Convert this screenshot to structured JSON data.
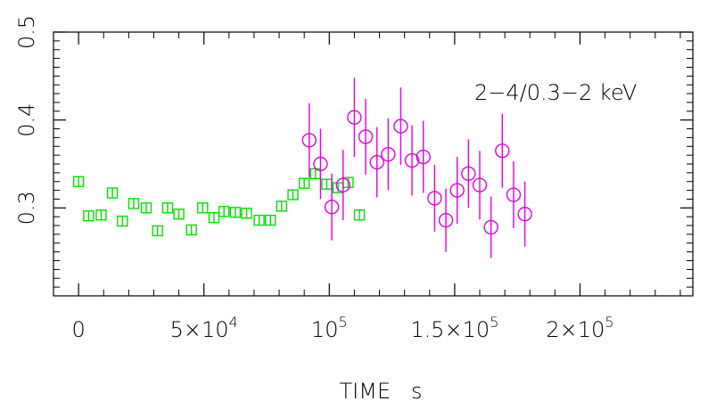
{
  "chart_data": {
    "type": "scatter",
    "title": "",
    "xlabel": "TIME   s",
    "ylabel": "",
    "xlim": [
      -10000,
      245000
    ],
    "ylim": [
      0.2,
      0.5
    ],
    "x_ticks": [
      {
        "value": 0,
        "base": "0",
        "exp": ""
      },
      {
        "value": 50000,
        "base": "5×10",
        "exp": "4"
      },
      {
        "value": 100000,
        "base": "10",
        "exp": "5"
      },
      {
        "value": 150000,
        "base": "1.5×10",
        "exp": "5"
      },
      {
        "value": 200000,
        "base": "2×10",
        "exp": "5"
      }
    ],
    "y_ticks": [
      {
        "value": 0.3,
        "label": "0.3"
      },
      {
        "value": 0.4,
        "label": "0.4"
      },
      {
        "value": 0.5,
        "label": "0.5"
      }
    ],
    "annotation": "2−4/0.3−2 keV",
    "grid": false,
    "series": [
      {
        "marker": "square",
        "color": "#00e000",
        "points": [
          {
            "x": 0,
            "y": 0.33,
            "err": 0.006
          },
          {
            "x": 4000,
            "y": 0.291,
            "err": 0.006
          },
          {
            "x": 9000,
            "y": 0.292,
            "err": 0.006
          },
          {
            "x": 13500,
            "y": 0.317,
            "err": 0.006
          },
          {
            "x": 17500,
            "y": 0.285,
            "err": 0.006
          },
          {
            "x": 22000,
            "y": 0.305,
            "err": 0.006
          },
          {
            "x": 27000,
            "y": 0.3,
            "err": 0.006
          },
          {
            "x": 31500,
            "y": 0.274,
            "err": 0.006
          },
          {
            "x": 35500,
            "y": 0.3,
            "err": 0.006
          },
          {
            "x": 40000,
            "y": 0.293,
            "err": 0.006
          },
          {
            "x": 45000,
            "y": 0.275,
            "err": 0.006
          },
          {
            "x": 49500,
            "y": 0.3,
            "err": 0.006
          },
          {
            "x": 54000,
            "y": 0.289,
            "err": 0.006
          },
          {
            "x": 58000,
            "y": 0.296,
            "err": 0.006
          },
          {
            "x": 62500,
            "y": 0.295,
            "err": 0.006
          },
          {
            "x": 67000,
            "y": 0.294,
            "err": 0.006
          },
          {
            "x": 72000,
            "y": 0.286,
            "err": 0.006
          },
          {
            "x": 76500,
            "y": 0.286,
            "err": 0.006
          },
          {
            "x": 81000,
            "y": 0.302,
            "err": 0.006
          },
          {
            "x": 85500,
            "y": 0.315,
            "err": 0.006
          },
          {
            "x": 90000,
            "y": 0.328,
            "err": 0.006
          },
          {
            "x": 94500,
            "y": 0.339,
            "err": 0.006
          },
          {
            "x": 99000,
            "y": 0.327,
            "err": 0.006
          },
          {
            "x": 103500,
            "y": 0.323,
            "err": 0.006
          },
          {
            "x": 107500,
            "y": 0.329,
            "err": 0.006
          },
          {
            "x": 112000,
            "y": 0.292,
            "err": 0.006
          }
        ]
      },
      {
        "marker": "circle",
        "color": "#e000e0",
        "points": [
          {
            "x": 92000,
            "y": 0.377,
            "err": 0.042
          },
          {
            "x": 96500,
            "y": 0.35,
            "err": 0.04
          },
          {
            "x": 101000,
            "y": 0.301,
            "err": 0.038
          },
          {
            "x": 105500,
            "y": 0.326,
            "err": 0.04
          },
          {
            "x": 110000,
            "y": 0.403,
            "err": 0.045
          },
          {
            "x": 114500,
            "y": 0.381,
            "err": 0.043
          },
          {
            "x": 119000,
            "y": 0.352,
            "err": 0.04
          },
          {
            "x": 123500,
            "y": 0.361,
            "err": 0.041
          },
          {
            "x": 128500,
            "y": 0.393,
            "err": 0.044
          },
          {
            "x": 133000,
            "y": 0.354,
            "err": 0.04
          },
          {
            "x": 137500,
            "y": 0.358,
            "err": 0.041
          },
          {
            "x": 142000,
            "y": 0.311,
            "err": 0.038
          },
          {
            "x": 146500,
            "y": 0.286,
            "err": 0.036
          },
          {
            "x": 151000,
            "y": 0.32,
            "err": 0.038
          },
          {
            "x": 155500,
            "y": 0.339,
            "err": 0.039
          },
          {
            "x": 160000,
            "y": 0.326,
            "err": 0.039
          },
          {
            "x": 164500,
            "y": 0.278,
            "err": 0.035
          },
          {
            "x": 169000,
            "y": 0.365,
            "err": 0.042
          },
          {
            "x": 173500,
            "y": 0.315,
            "err": 0.038
          },
          {
            "x": 178000,
            "y": 0.293,
            "err": 0.037
          }
        ]
      }
    ]
  }
}
